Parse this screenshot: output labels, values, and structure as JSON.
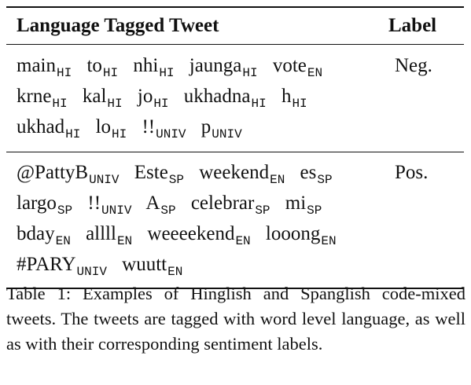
{
  "table": {
    "header": {
      "col1": "Language Tagged Tweet",
      "col2": "Label"
    },
    "rows": [
      {
        "tokens": [
          {
            "w": "main",
            "t": "HI"
          },
          {
            "w": "to",
            "t": "HI"
          },
          {
            "w": "nhi",
            "t": "HI"
          },
          {
            "w": "jaunga",
            "t": "HI"
          },
          {
            "w": "vote",
            "t": "EN"
          },
          {
            "w": "krne",
            "t": "HI"
          },
          {
            "w": "kal",
            "t": "HI"
          },
          {
            "w": "jo",
            "t": "HI"
          },
          {
            "w": "ukhadna",
            "t": "HI"
          },
          {
            "w": "h",
            "t": "HI"
          },
          {
            "w": "ukhad",
            "t": "HI"
          },
          {
            "w": "lo",
            "t": "HI"
          },
          {
            "w": "!!",
            "t": "UNIV"
          },
          {
            "w": "p",
            "t": "UNIV"
          }
        ],
        "label": "Neg."
      },
      {
        "tokens": [
          {
            "w": "@PattyB",
            "t": "UNIV"
          },
          {
            "w": "Este",
            "t": "SP"
          },
          {
            "w": "weekend",
            "t": "EN"
          },
          {
            "w": "es",
            "t": "SP"
          },
          {
            "w": "largo",
            "t": "SP"
          },
          {
            "w": "!!",
            "t": "UNIV"
          },
          {
            "w": "A",
            "t": "SP"
          },
          {
            "w": "celebrar",
            "t": "SP"
          },
          {
            "w": "mi",
            "t": "SP"
          },
          {
            "w": "bday",
            "t": "EN"
          },
          {
            "w": "allll",
            "t": "EN"
          },
          {
            "w": "weeeekend",
            "t": "EN"
          },
          {
            "w": "looong",
            "t": "EN"
          },
          {
            "w": "#PARY",
            "t": "UNIV"
          },
          {
            "w": "wuutt",
            "t": "EN"
          }
        ],
        "label": "Pos."
      }
    ]
  },
  "caption": "Table 1: Examples of Hinglish and Spanglish code-mixed tweets. The tweets are tagged with word level language, as well as with their corresponding sentiment labels."
}
